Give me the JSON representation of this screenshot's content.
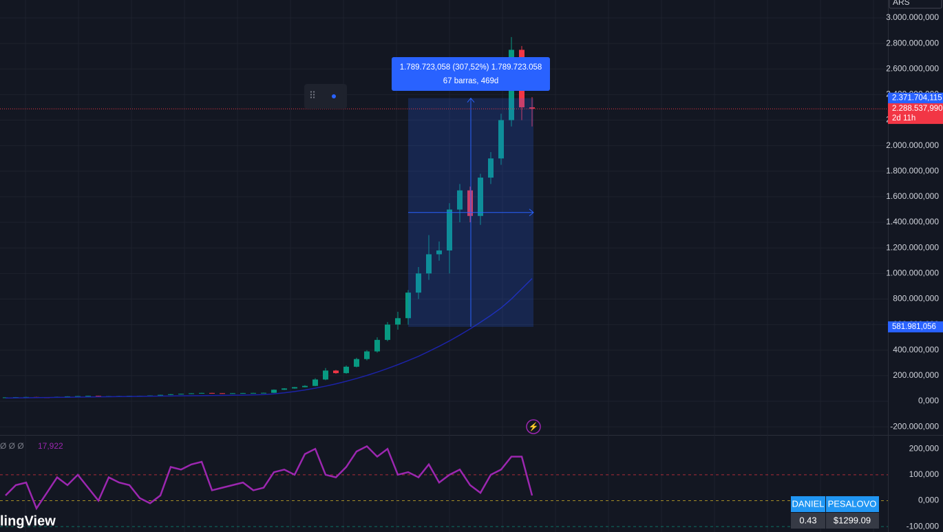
{
  "chart_data": [
    {
      "type": "candlestick",
      "currency": "ARS",
      "open": [
        29000,
        30000,
        32000,
        33000,
        30000,
        28000,
        35000,
        38000,
        40000,
        42000,
        40000,
        40000,
        41000,
        42000,
        43000,
        45000,
        50000,
        55000,
        58000,
        62000,
        65000,
        63000,
        62000,
        63000,
        64000,
        65000,
        66000,
        90000,
        100000,
        110000,
        120000,
        170000,
        240000,
        220000,
        270000,
        330000,
        390000,
        480000,
        600000,
        650000,
        850000,
        1000000,
        1150000,
        1180000,
        1500000,
        1650000,
        1450000,
        1750000,
        1900000,
        2200000,
        2750000,
        2300000
      ],
      "high": [
        31000,
        33000,
        34000,
        34000,
        31000,
        36000,
        39000,
        41000,
        43000,
        43000,
        41000,
        42000,
        43000,
        44000,
        46000,
        51000,
        56000,
        59000,
        63000,
        66000,
        66000,
        64000,
        64000,
        65000,
        66000,
        67000,
        92000,
        102000,
        112000,
        125000,
        180000,
        260000,
        245000,
        280000,
        340000,
        400000,
        500000,
        620000,
        700000,
        870000,
        1050000,
        1300000,
        1250000,
        1550000,
        1700000,
        1680000,
        1780000,
        1950000,
        2250000,
        2850000,
        2780000,
        2380000
      ],
      "low": [
        27000,
        28000,
        30000,
        29000,
        27000,
        27000,
        33000,
        36000,
        39000,
        38000,
        38000,
        39000,
        40000,
        41000,
        42000,
        44000,
        48000,
        53000,
        56000,
        60000,
        61000,
        60000,
        60000,
        61000,
        62000,
        63000,
        64000,
        88000,
        98000,
        108000,
        118000,
        165000,
        215000,
        215000,
        265000,
        320000,
        380000,
        470000,
        560000,
        600000,
        800000,
        950000,
        1100000,
        1000000,
        1400000,
        1400000,
        1380000,
        1700000,
        1850000,
        2150000,
        2200000,
        2150000
      ],
      "close": [
        30000,
        32000,
        33000,
        30000,
        28000,
        35000,
        38000,
        40000,
        42000,
        40000,
        40000,
        41000,
        42000,
        43000,
        45000,
        50000,
        55000,
        58000,
        62000,
        65000,
        63000,
        62000,
        63000,
        64000,
        65000,
        66000,
        90000,
        100000,
        110000,
        120000,
        170000,
        240000,
        220000,
        270000,
        330000,
        390000,
        480000,
        600000,
        650000,
        850000,
        1000000,
        1150000,
        1180000,
        1500000,
        1650000,
        1450000,
        1750000,
        1900000,
        2200000,
        2750000,
        2300000,
        2290000
      ],
      "up_color": "#089981",
      "down_color": "#f23645",
      "ma": {
        "color": "#1c23a8",
        "values": [
          25000,
          26000,
          27000,
          28000,
          29000,
          30000,
          31000,
          32000,
          33000,
          34000,
          35000,
          36000,
          37000,
          38000,
          39000,
          40000,
          41000,
          42000,
          43000,
          44000,
          45000,
          46000,
          47000,
          48000,
          50000,
          52000,
          58000,
          66000,
          76000,
          88000,
          102000,
          118000,
          136000,
          156000,
          178000,
          202000,
          228000,
          256000,
          286000,
          318000,
          352000,
          390000,
          430000,
          472000,
          518000,
          566000,
          618000,
          672000,
          730000,
          800000,
          880000,
          960000
        ]
      },
      "ylim": [
        -264000,
        3140000
      ],
      "yticks": [
        {
          "value": -200000,
          "label": "-200.000,000"
        },
        {
          "value": 0,
          "label": "0,000"
        },
        {
          "value": 200000,
          "label": "200.000,000"
        },
        {
          "value": 400000,
          "label": "400.000,000"
        },
        {
          "value": 600000,
          "label": "600.000,000"
        },
        {
          "value": 800000,
          "label": "800.000,000"
        },
        {
          "value": 1000000,
          "label": "1.000.000,000"
        },
        {
          "value": 1200000,
          "label": "1.200.000,000"
        },
        {
          "value": 1400000,
          "label": "1.400.000,000"
        },
        {
          "value": 1600000,
          "label": "1.600.000,000"
        },
        {
          "value": 1800000,
          "label": "1.800.000,000"
        },
        {
          "value": 2000000,
          "label": "2.000.000,000"
        },
        {
          "value": 2200000,
          "label": "2.200.000,000"
        },
        {
          "value": 2400000,
          "label": "2.400.000,000"
        },
        {
          "value": 2600000,
          "label": "2.600.000,000"
        },
        {
          "value": 2800000,
          "label": "2.800.000,000"
        },
        {
          "value": 3000000,
          "label": "3.000.000,000"
        }
      ],
      "grid": true,
      "price_markers": [
        {
          "value": 2371704.115,
          "label": "2.371.704,115",
          "color": "#2962ff"
        },
        {
          "value": 2288537.99,
          "label": "2.288.537,990",
          "color": "#f23645",
          "countdown": "2d 11h"
        },
        {
          "value": 581981.056,
          "label": "581.981,056",
          "color": "#2962ff"
        }
      ],
      "measure": {
        "label": "1.789.723,058 (307,52%) 1.789.723.058",
        "sublabel": "67 barras, 469d"
      }
    },
    {
      "type": "line",
      "color": "#9c27b0",
      "legend": "Ø Ø Ø",
      "legend_value": "17,922",
      "values": [
        20,
        60,
        70,
        -30,
        30,
        90,
        60,
        100,
        50,
        0,
        90,
        70,
        60,
        10,
        -10,
        20,
        130,
        120,
        140,
        150,
        40,
        50,
        60,
        70,
        40,
        50,
        110,
        120,
        100,
        180,
        200,
        100,
        90,
        130,
        190,
        210,
        170,
        200,
        100,
        110,
        90,
        140,
        70,
        100,
        120,
        60,
        30,
        100,
        120,
        170,
        170,
        20
      ],
      "ylim": [
        -121,
        251
      ],
      "yticks": [
        {
          "value": 200,
          "label": "200,000"
        },
        {
          "value": 100,
          "label": "100,000"
        },
        {
          "value": 0,
          "label": "0,000"
        },
        {
          "value": -100,
          "label": "-100,000"
        }
      ]
    }
  ],
  "table": {
    "header": [
      "DANIEL",
      "PESALOVO"
    ],
    "row": [
      "0.43",
      "$1299.09"
    ]
  },
  "watermark": "lingView"
}
